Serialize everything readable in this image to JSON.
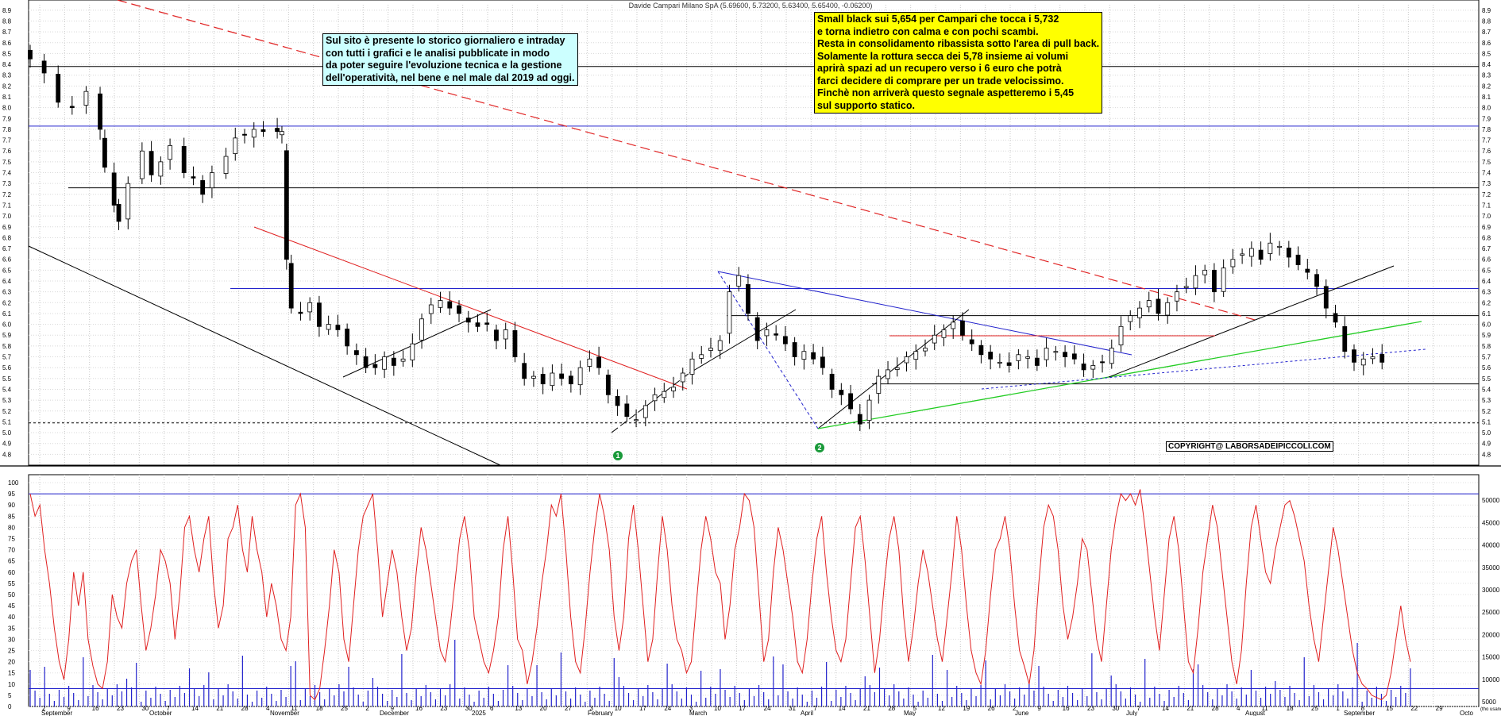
{
  "chart_data": [
    {
      "type": "candlestick",
      "title": "Davide Campari Milano SpA (5.69600, 5.73200, 5.63400, 5.65400, -0.06200)",
      "ylim": [
        4.7,
        8.95
      ],
      "y_ticks": [
        4.8,
        4.9,
        5.0,
        5.1,
        5.2,
        5.3,
        5.4,
        5.5,
        5.6,
        5.7,
        5.8,
        5.9,
        6.0,
        6.1,
        6.2,
        6.3,
        6.4,
        6.5,
        6.6,
        6.7,
        6.8,
        6.9,
        7.0,
        7.1,
        7.2,
        7.3,
        7.4,
        7.5,
        7.6,
        7.7,
        7.8,
        7.9,
        8.0,
        8.1,
        8.2,
        8.3,
        8.4,
        8.5,
        8.6,
        8.7,
        8.8,
        8.9
      ],
      "y_tick_labels": [
        "4.8",
        "4.9",
        "5.0",
        "5.1",
        "5.2",
        "5.3",
        "5.4",
        "5.5",
        "5.6",
        "5.7",
        "5.8",
        "5.9",
        "6.0",
        "6.1",
        "6.2",
        "6.3",
        "6.4",
        "6.5",
        "6.6",
        "6.7",
        "6.8",
        "6.9",
        "7.0",
        "7.1",
        "7.2",
        "7.3",
        "7.4",
        "7.5",
        "7.6",
        "7.7",
        "7.8",
        "7.9",
        "8.0",
        "8.1",
        "8.2",
        "8.3",
        "8.4",
        "8.5",
        "8.6",
        "8.7",
        "8.8",
        "8.9"
      ],
      "close_series": [
        [
          0,
          8.45
        ],
        [
          3,
          8.32
        ],
        [
          6,
          8.05
        ],
        [
          9,
          8.0
        ],
        [
          12,
          8.15
        ],
        [
          15,
          7.8
        ],
        [
          16,
          7.45
        ],
        [
          18,
          7.1
        ],
        [
          19,
          6.95
        ],
        [
          21,
          7.3
        ],
        [
          24,
          7.6
        ],
        [
          26,
          7.38
        ],
        [
          28,
          7.5
        ],
        [
          30,
          7.65
        ],
        [
          33,
          7.4
        ],
        [
          35,
          7.35
        ],
        [
          37,
          7.2
        ],
        [
          39,
          7.4
        ],
        [
          42,
          7.55
        ],
        [
          44,
          7.72
        ],
        [
          46,
          7.75
        ],
        [
          48,
          7.8
        ],
        [
          50,
          7.78
        ],
        [
          53,
          7.78
        ],
        [
          54,
          7.78
        ],
        [
          55,
          6.6
        ],
        [
          56,
          6.15
        ],
        [
          58,
          6.1
        ],
        [
          60,
          6.2
        ],
        [
          62,
          5.98
        ],
        [
          64,
          6.0
        ],
        [
          66,
          5.95
        ],
        [
          68,
          5.8
        ],
        [
          70,
          5.72
        ],
        [
          72,
          5.6
        ],
        [
          74,
          5.6
        ],
        [
          76,
          5.7
        ],
        [
          78,
          5.62
        ],
        [
          80,
          5.68
        ],
        [
          82,
          5.82
        ],
        [
          84,
          6.05
        ],
        [
          86,
          6.18
        ],
        [
          88,
          6.22
        ],
        [
          90,
          6.15
        ],
        [
          92,
          6.1
        ],
        [
          94,
          6.02
        ],
        [
          96,
          5.98
        ],
        [
          98,
          6.0
        ],
        [
          100,
          5.85
        ],
        [
          102,
          5.95
        ],
        [
          104,
          5.7
        ],
        [
          106,
          5.5
        ],
        [
          108,
          5.52
        ],
        [
          110,
          5.45
        ],
        [
          112,
          5.55
        ],
        [
          114,
          5.5
        ],
        [
          116,
          5.45
        ],
        [
          118,
          5.6
        ],
        [
          120,
          5.68
        ],
        [
          122,
          5.6
        ],
        [
          124,
          5.35
        ],
        [
          126,
          5.25
        ],
        [
          128,
          5.15
        ],
        [
          130,
          5.12
        ],
        [
          132,
          5.25
        ],
        [
          134,
          5.35
        ],
        [
          136,
          5.38
        ],
        [
          138,
          5.42
        ],
        [
          140,
          5.55
        ],
        [
          142,
          5.68
        ],
        [
          144,
          5.72
        ],
        [
          146,
          5.78
        ],
        [
          148,
          5.85
        ],
        [
          150,
          6.3
        ],
        [
          152,
          6.45
        ],
        [
          154,
          6.1
        ],
        [
          156,
          5.85
        ],
        [
          158,
          5.95
        ],
        [
          160,
          5.9
        ],
        [
          162,
          5.82
        ],
        [
          164,
          5.7
        ],
        [
          166,
          5.75
        ],
        [
          168,
          5.68
        ],
        [
          170,
          5.6
        ],
        [
          172,
          5.4
        ],
        [
          174,
          5.35
        ],
        [
          176,
          5.22
        ],
        [
          178,
          5.08
        ],
        [
          180,
          5.3
        ],
        [
          182,
          5.52
        ],
        [
          184,
          5.58
        ],
        [
          186,
          5.6
        ],
        [
          188,
          5.7
        ],
        [
          190,
          5.75
        ],
        [
          192,
          5.78
        ],
        [
          194,
          5.9
        ],
        [
          196,
          5.95
        ],
        [
          198,
          6.02
        ],
        [
          200,
          5.9
        ],
        [
          202,
          5.82
        ],
        [
          204,
          5.72
        ],
        [
          206,
          5.68
        ],
        [
          208,
          5.65
        ],
        [
          210,
          5.62
        ],
        [
          212,
          5.72
        ],
        [
          214,
          5.7
        ],
        [
          216,
          5.62
        ],
        [
          218,
          5.78
        ],
        [
          220,
          5.75
        ],
        [
          222,
          5.7
        ],
        [
          224,
          5.68
        ],
        [
          226,
          5.58
        ],
        [
          228,
          5.62
        ],
        [
          230,
          5.65
        ],
        [
          232,
          5.78
        ],
        [
          234,
          5.98
        ],
        [
          236,
          6.08
        ],
        [
          238,
          6.15
        ],
        [
          240,
          6.22
        ],
        [
          242,
          6.1
        ],
        [
          244,
          6.2
        ],
        [
          246,
          6.3
        ],
        [
          248,
          6.35
        ],
        [
          250,
          6.45
        ],
        [
          252,
          6.5
        ],
        [
          254,
          6.3
        ],
        [
          256,
          6.52
        ],
        [
          258,
          6.6
        ],
        [
          260,
          6.65
        ],
        [
          262,
          6.7
        ],
        [
          264,
          6.6
        ],
        [
          266,
          6.75
        ],
        [
          268,
          6.72
        ],
        [
          270,
          6.62
        ],
        [
          272,
          6.55
        ],
        [
          274,
          6.48
        ],
        [
          276,
          6.35
        ],
        [
          278,
          6.15
        ],
        [
          280,
          6.02
        ],
        [
          282,
          5.75
        ],
        [
          284,
          5.65
        ],
        [
          286,
          5.68
        ],
        [
          288,
          5.7
        ],
        [
          290,
          5.65
        ]
      ],
      "horizontal_levels": [
        8.38,
        7.83,
        7.26,
        6.33,
        6.08,
        5.45,
        5.09
      ],
      "annotations": [
        "1",
        "2"
      ],
      "copyright": "COPYRIGHT@ LABORSADEIPICCOLI.COM",
      "note_left": [
        "Sul sito è presente lo storico giornaliero e intraday",
        "con tutti i grafici e le analisi pubblicate in modo",
        "da poter seguire l'evoluzione tecnica e la gestione",
        "dell'operatività, nel bene e nel male dal 2019 ad oggi."
      ],
      "note_right": [
        "Small black sui 5,654 per Campari che tocca i 5,732",
        "e torna indietro con calma e con pochi scambi.",
        "Resta in consolidamento ribassista sotto l'area di pull back.",
        "Solamente la rottura secca dei 5,78 insieme ai volumi",
        "aprirà spazi ad un recupero verso i 6 euro che potrà",
        "farci decidere di comprare per un trade velocissimo.",
        "Finchè non arriverà questo segnale aspetteremo i 5,45",
        "sul supporto statico."
      ]
    },
    {
      "type": "line+bar",
      "name": "oscillator-and-volume",
      "ylim_left": [
        0,
        100
      ],
      "left_ticks": [
        "0",
        "5",
        "10",
        "15",
        "20",
        "25",
        "30",
        "35",
        "40",
        "45",
        "50",
        "55",
        "60",
        "65",
        "70",
        "75",
        "80",
        "85",
        "90",
        "95",
        "100"
      ],
      "right_ticks": [
        "5000",
        "10000",
        "15000",
        "20000",
        "25000",
        "30000",
        "35000",
        "40000",
        "45000",
        "50000"
      ],
      "right_unit": "(tho usands)",
      "levels": [
        95,
        8
      ],
      "oscillator": [
        95,
        85,
        90,
        70,
        55,
        35,
        20,
        12,
        30,
        60,
        45,
        60,
        30,
        18,
        10,
        8,
        20,
        50,
        40,
        35,
        55,
        65,
        70,
        45,
        25,
        35,
        50,
        70,
        65,
        55,
        30,
        50,
        80,
        85,
        70,
        60,
        75,
        85,
        55,
        35,
        45,
        75,
        80,
        90,
        70,
        60,
        85,
        70,
        60,
        40,
        55,
        45,
        30,
        25,
        40,
        90,
        95,
        80,
        5,
        3,
        8,
        25,
        45,
        70,
        60,
        30,
        20,
        45,
        70,
        85,
        90,
        95,
        70,
        40,
        55,
        70,
        60,
        40,
        25,
        35,
        60,
        80,
        70,
        55,
        40,
        25,
        20,
        35,
        55,
        75,
        85,
        70,
        40,
        30,
        20,
        15,
        25,
        40,
        70,
        85,
        60,
        30,
        25,
        10,
        20,
        35,
        55,
        70,
        90,
        85,
        95,
        70,
        40,
        20,
        15,
        35,
        60,
        80,
        95,
        85,
        70,
        40,
        25,
        40,
        75,
        90,
        70,
        45,
        20,
        30,
        60,
        85,
        70,
        45,
        30,
        25,
        15,
        20,
        45,
        70,
        85,
        75,
        60,
        55,
        30,
        45,
        70,
        80,
        95,
        92,
        80,
        50,
        20,
        30,
        60,
        80,
        70,
        55,
        40,
        20,
        15,
        30,
        55,
        75,
        85,
        60,
        40,
        25,
        20,
        30,
        55,
        80,
        85,
        65,
        40,
        15,
        30,
        55,
        75,
        85,
        70,
        40,
        20,
        35,
        55,
        70,
        60,
        45,
        30,
        20,
        40,
        60,
        85,
        70,
        45,
        25,
        15,
        10,
        25,
        50,
        70,
        75,
        85,
        70,
        45,
        25,
        18,
        10,
        25,
        55,
        80,
        90,
        85,
        70,
        45,
        30,
        40,
        55,
        75,
        70,
        50,
        30,
        20,
        45,
        70,
        85,
        95,
        92,
        95,
        90,
        97,
        80,
        60,
        40,
        25,
        50,
        75,
        85,
        70,
        45,
        20,
        15,
        35,
        60,
        75,
        90,
        80,
        60,
        40,
        20,
        10,
        25,
        55,
        80,
        90,
        75,
        60,
        55,
        70,
        80,
        90,
        92,
        85,
        75,
        65,
        45,
        30,
        20,
        40,
        60,
        80,
        70,
        55,
        40,
        25,
        15,
        10,
        8,
        5,
        4,
        3,
        5,
        15,
        30,
        45,
        30,
        20
      ]
    }
  ],
  "x_axis": {
    "day_labels": [
      "2",
      "9",
      "16",
      "23",
      "30",
      "7",
      "14",
      "21",
      "28",
      "4",
      "11",
      "18",
      "25",
      "2",
      "9",
      "16",
      "23",
      "30",
      "6",
      "13",
      "20",
      "27",
      "3",
      "10",
      "17",
      "24",
      "3",
      "10",
      "17",
      "24",
      "31",
      "7",
      "14",
      "21",
      "28",
      "5",
      "12",
      "19",
      "26",
      "2",
      "9",
      "16",
      "23",
      "30",
      "7",
      "14",
      "21",
      "28",
      "4",
      "11",
      "18",
      "25",
      "1",
      "8",
      "15",
      "22",
      "29"
    ],
    "month_labels": [
      "September",
      "October",
      "November",
      "December",
      "2025",
      "February",
      "March",
      "April",
      "May",
      "June",
      "July",
      "August",
      "September",
      "Octo"
    ]
  }
}
